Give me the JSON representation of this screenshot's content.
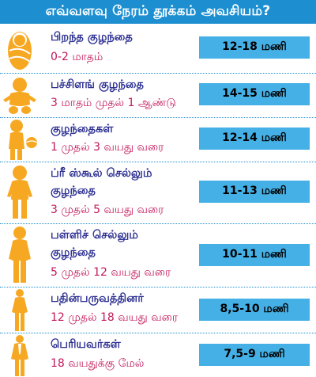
{
  "title": "எவ்வளவு நேரம் தூக்கம் அவசியம்?",
  "colors": {
    "header": "#1d8fd0",
    "hours_box": "#44b0e6",
    "category": "#2e3192",
    "age": "#c2185b",
    "figure": "#f7a823"
  },
  "rows": [
    {
      "category": [
        "பிறந்த குழந்தை"
      ],
      "age": "0-2 மாதம்",
      "hours": "12-18 மணி",
      "icon": "swaddled-newborn-icon"
    },
    {
      "category": [
        "பச்சிளங் குழந்தை"
      ],
      "age": "3 மாதம் முதல் 1 ஆண்டு",
      "hours": "14-15 மணி",
      "icon": "infant-icon"
    },
    {
      "category": [
        "குழந்தைகள்"
      ],
      "age": "1 முதல் 3 வயது வரை",
      "hours": "12-14 மணி",
      "icon": "toddler-with-ball-icon"
    },
    {
      "category": [
        "ப்ரீ ஸ்கூல் செல்லும்",
        "குழந்தை"
      ],
      "age": "3 முதல் 5 வயது வரை",
      "hours": "11-13 மணி",
      "icon": "preschool-child-icon"
    },
    {
      "category": [
        "பள்ளிச் செல்லும்",
        "குழந்தை"
      ],
      "age": "5 முதல் 12 வயது வரை",
      "hours": "10-11 மணி",
      "icon": "school-child-icon"
    },
    {
      "category": [
        "பதின்பருவத்தினர்"
      ],
      "age": "12 முதல் 18 வயது வரை",
      "hours": "8,5-10 மணி",
      "icon": "teenager-icon"
    },
    {
      "category": [
        "பெரியவர்கள்"
      ],
      "age": "18 வயதுக்கு மேல்",
      "hours": "7,5-9 மணி",
      "icon": "adult-man-icon"
    }
  ]
}
